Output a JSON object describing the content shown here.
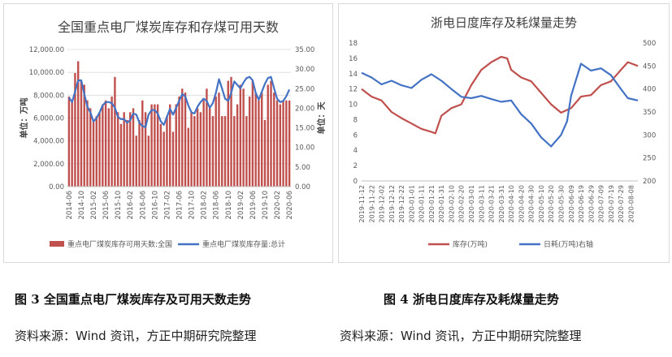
{
  "figures": [
    {
      "caption": "图 3  全国重点电厂煤炭库存及可用天数走势",
      "source": "资料来源：Wind 资讯，方正中期研究院整理"
    },
    {
      "caption": "图 4  浙电日度库存及耗煤量走势",
      "source": "资料来源：Wind 资讯，方正中期研究院整理"
    }
  ],
  "chart_data": [
    {
      "type": "bar",
      "title": "全国重点电厂煤炭库存和存煤可用天数",
      "ylabel": "单位：万吨",
      "y2label": "单位：天",
      "ylim": [
        0,
        12000
      ],
      "y2lim": [
        0,
        35
      ],
      "yticks": [
        "0.00",
        "2,000.00",
        "4,000.00",
        "6,000.00",
        "8,000.00",
        "10,000.00",
        "12,000.00"
      ],
      "y2ticks": [
        "0.00",
        "5.00",
        "10.00",
        "15.00",
        "20.00",
        "25.00",
        "30.00",
        "35.00"
      ],
      "xticks": [
        "2014-06",
        "2014-10",
        "2015-02",
        "2015-06",
        "2015-10",
        "2016-02",
        "2016-06",
        "2016-10",
        "2017-02",
        "2017-06",
        "2017-10",
        "2018-02",
        "2018-06",
        "2018-10",
        "2019-02",
        "2019-06",
        "2019-10",
        "2020-02",
        "2020-06"
      ],
      "n_points": 73,
      "series": [
        {
          "name": "重点电厂煤炭库存可用天数:全国",
          "axis": "right",
          "color": "#c0504d",
          "values": [
            23,
            22,
            29,
            32,
            27,
            26,
            22,
            20,
            17,
            18,
            19,
            21,
            22,
            20,
            23,
            28,
            19,
            16,
            19,
            17,
            19,
            20,
            13,
            17,
            22,
            19,
            13,
            21,
            21,
            21,
            16,
            14,
            18,
            21,
            14,
            21,
            23,
            25,
            24,
            15,
            19,
            18,
            20,
            19,
            22,
            25,
            20,
            18,
            23,
            24,
            18,
            18,
            27,
            28,
            18,
            21,
            26,
            25,
            18,
            23,
            27,
            24,
            22,
            24,
            17,
            26,
            27,
            24,
            22,
            21,
            22,
            22,
            22
          ]
        },
        {
          "name": "重点电厂煤炭库存量:总计",
          "axis": "left",
          "color": "#4472c4",
          "values": [
            7800,
            7400,
            8300,
            9300,
            9300,
            8100,
            7000,
            6500,
            5700,
            6000,
            6500,
            7100,
            7400,
            7400,
            7300,
            6900,
            6100,
            5900,
            5900,
            5600,
            5800,
            6400,
            6300,
            5600,
            5300,
            5200,
            6300,
            6700,
            6700,
            6400,
            5700,
            5400,
            6100,
            6800,
            6300,
            6900,
            7500,
            8100,
            7900,
            7100,
            6500,
            6400,
            7000,
            7400,
            7700,
            7500,
            6900,
            7300,
            8200,
            9400,
            8600,
            7700,
            7500,
            8200,
            9200,
            8900,
            8600,
            9100,
            9500,
            9600,
            9300,
            8200,
            7600,
            8300,
            9000,
            9500,
            9600,
            8600,
            7700,
            7400,
            7500,
            7900,
            8500
          ]
        }
      ]
    },
    {
      "type": "line",
      "title": "浙电日度库存及耗煤量走势",
      "ylim": [
        0,
        18
      ],
      "y2lim": [
        200,
        500
      ],
      "yticks": [
        "0",
        "2",
        "4",
        "6",
        "8",
        "10",
        "12",
        "14",
        "16",
        "18"
      ],
      "y2ticks": [
        "200",
        "250",
        "300",
        "350",
        "400",
        "450",
        "500"
      ],
      "xticks": [
        "2019-11-12",
        "2019-11-22",
        "2019-12-02",
        "2019-12-12",
        "2019-12-22",
        "2020-01-01",
        "2020-01-11",
        "2020-01-21",
        "2020-01-31",
        "2020-02-10",
        "2020-02-20",
        "2020-03-01",
        "2020-03-11",
        "2020-03-21",
        "2020-03-31",
        "2020-04-10",
        "2020-04-20",
        "2020-04-30",
        "2020-05-10",
        "2020-05-20",
        "2020-05-30",
        "2020-06-09",
        "2020-06-19",
        "2020-06-29",
        "2020-07-09",
        "2020-07-19",
        "2020-07-29",
        "2020-08-08"
      ],
      "x_start": "2019-11-12",
      "x_end": "2020-08-15",
      "series": [
        {
          "name": "库存(万吨)",
          "axis": "left",
          "color": "#c0504d",
          "points": [
            [
              "2019-11-12",
              12.0
            ],
            [
              "2019-11-22",
              11.0
            ],
            [
              "2019-12-02",
              10.5
            ],
            [
              "2019-12-12",
              9.0
            ],
            [
              "2019-12-22",
              8.2
            ],
            [
              "2020-01-01",
              7.5
            ],
            [
              "2020-01-11",
              6.8
            ],
            [
              "2020-01-21",
              6.4
            ],
            [
              "2020-01-25",
              6.2
            ],
            [
              "2020-01-31",
              8.5
            ],
            [
              "2020-02-10",
              9.5
            ],
            [
              "2020-02-20",
              10.0
            ],
            [
              "2020-03-01",
              12.5
            ],
            [
              "2020-03-11",
              14.5
            ],
            [
              "2020-03-21",
              15.5
            ],
            [
              "2020-03-31",
              16.2
            ],
            [
              "2020-04-06",
              16.0
            ],
            [
              "2020-04-10",
              14.5
            ],
            [
              "2020-04-20",
              13.5
            ],
            [
              "2020-04-30",
              13.0
            ],
            [
              "2020-05-10",
              11.5
            ],
            [
              "2020-05-20",
              10.0
            ],
            [
              "2020-05-30",
              8.9
            ],
            [
              "2020-06-09",
              9.5
            ],
            [
              "2020-06-19",
              11.0
            ],
            [
              "2020-06-29",
              11.2
            ],
            [
              "2020-07-09",
              12.5
            ],
            [
              "2020-07-19",
              13.0
            ],
            [
              "2020-07-29",
              14.5
            ],
            [
              "2020-08-05",
              15.5
            ],
            [
              "2020-08-15",
              15.0
            ]
          ]
        },
        {
          "name": "日耗(万吨)右轴",
          "axis": "right",
          "color": "#4472c4",
          "points": [
            [
              "2019-11-12",
              435
            ],
            [
              "2019-11-22",
              425
            ],
            [
              "2019-12-02",
              410
            ],
            [
              "2019-12-12",
              418
            ],
            [
              "2019-12-22",
              408
            ],
            [
              "2020-01-01",
              402
            ],
            [
              "2020-01-11",
              420
            ],
            [
              "2020-01-21",
              432
            ],
            [
              "2020-01-31",
              418
            ],
            [
              "2020-02-10",
              400
            ],
            [
              "2020-02-20",
              383
            ],
            [
              "2020-03-01",
              380
            ],
            [
              "2020-03-11",
              385
            ],
            [
              "2020-03-21",
              378
            ],
            [
              "2020-03-31",
              372
            ],
            [
              "2020-04-10",
              375
            ],
            [
              "2020-04-20",
              345
            ],
            [
              "2020-04-30",
              325
            ],
            [
              "2020-05-10",
              295
            ],
            [
              "2020-05-20",
              275
            ],
            [
              "2020-05-30",
              300
            ],
            [
              "2020-06-05",
              330
            ],
            [
              "2020-06-09",
              385
            ],
            [
              "2020-06-19",
              455
            ],
            [
              "2020-06-29",
              440
            ],
            [
              "2020-07-09",
              445
            ],
            [
              "2020-07-19",
              430
            ],
            [
              "2020-07-29",
              400
            ],
            [
              "2020-08-05",
              380
            ],
            [
              "2020-08-15",
              375
            ]
          ]
        }
      ]
    }
  ]
}
